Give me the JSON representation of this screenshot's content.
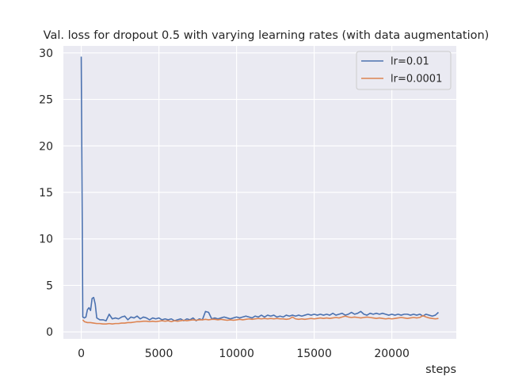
{
  "chart_data": {
    "type": "line",
    "title": "Val. loss for dropout 0.5 with varying learning rates (with data augmentation)",
    "xlabel": "steps",
    "ylabel": "",
    "xlim": [
      -1150,
      24150
    ],
    "ylim": [
      -0.75,
      30.75
    ],
    "xticks": [
      0,
      5000,
      10000,
      15000,
      20000
    ],
    "yticks": [
      0,
      5,
      10,
      15,
      20,
      25,
      30
    ],
    "grid": true,
    "legend_position": "top-right",
    "background": "#eaeaf2",
    "series": [
      {
        "name": "lr=0.01",
        "color": "#4c72b0",
        "points": [
          [
            0,
            29.6
          ],
          [
            100,
            1.6
          ],
          [
            200,
            1.5
          ],
          [
            300,
            1.6
          ],
          [
            400,
            2.4
          ],
          [
            500,
            2.6
          ],
          [
            600,
            2.3
          ],
          [
            700,
            3.6
          ],
          [
            800,
            3.7
          ],
          [
            900,
            3.0
          ],
          [
            1000,
            1.5
          ],
          [
            1200,
            1.3
          ],
          [
            1400,
            1.3
          ],
          [
            1600,
            1.2
          ],
          [
            1800,
            1.9
          ],
          [
            2000,
            1.4
          ],
          [
            2200,
            1.5
          ],
          [
            2400,
            1.4
          ],
          [
            2600,
            1.6
          ],
          [
            2800,
            1.7
          ],
          [
            3000,
            1.3
          ],
          [
            3200,
            1.6
          ],
          [
            3400,
            1.5
          ],
          [
            3600,
            1.7
          ],
          [
            3800,
            1.4
          ],
          [
            4000,
            1.6
          ],
          [
            4200,
            1.5
          ],
          [
            4400,
            1.3
          ],
          [
            4600,
            1.5
          ],
          [
            4800,
            1.4
          ],
          [
            5000,
            1.5
          ],
          [
            5200,
            1.3
          ],
          [
            5400,
            1.4
          ],
          [
            5600,
            1.3
          ],
          [
            5800,
            1.4
          ],
          [
            6000,
            1.2
          ],
          [
            6200,
            1.3
          ],
          [
            6400,
            1.4
          ],
          [
            6600,
            1.2
          ],
          [
            6800,
            1.4
          ],
          [
            7000,
            1.3
          ],
          [
            7200,
            1.5
          ],
          [
            7400,
            1.2
          ],
          [
            7600,
            1.4
          ],
          [
            7800,
            1.3
          ],
          [
            8000,
            2.2
          ],
          [
            8200,
            2.1
          ],
          [
            8400,
            1.4
          ],
          [
            8600,
            1.5
          ],
          [
            8800,
            1.4
          ],
          [
            9000,
            1.5
          ],
          [
            9200,
            1.6
          ],
          [
            9400,
            1.5
          ],
          [
            9600,
            1.4
          ],
          [
            9800,
            1.5
          ],
          [
            10000,
            1.6
          ],
          [
            10200,
            1.5
          ],
          [
            10400,
            1.6
          ],
          [
            10600,
            1.7
          ],
          [
            10800,
            1.6
          ],
          [
            11000,
            1.5
          ],
          [
            11200,
            1.7
          ],
          [
            11400,
            1.6
          ],
          [
            11600,
            1.8
          ],
          [
            11800,
            1.6
          ],
          [
            12000,
            1.8
          ],
          [
            12200,
            1.7
          ],
          [
            12400,
            1.8
          ],
          [
            12600,
            1.6
          ],
          [
            12800,
            1.7
          ],
          [
            13000,
            1.6
          ],
          [
            13200,
            1.8
          ],
          [
            13400,
            1.7
          ],
          [
            13600,
            1.8
          ],
          [
            13800,
            1.7
          ],
          [
            14000,
            1.8
          ],
          [
            14200,
            1.7
          ],
          [
            14400,
            1.8
          ],
          [
            14600,
            1.9
          ],
          [
            14800,
            1.8
          ],
          [
            15000,
            1.9
          ],
          [
            15200,
            1.8
          ],
          [
            15400,
            1.9
          ],
          [
            15600,
            1.8
          ],
          [
            15800,
            1.9
          ],
          [
            16000,
            1.8
          ],
          [
            16200,
            2.0
          ],
          [
            16400,
            1.8
          ],
          [
            16600,
            1.9
          ],
          [
            16800,
            2.0
          ],
          [
            17000,
            1.8
          ],
          [
            17200,
            1.9
          ],
          [
            17400,
            2.1
          ],
          [
            17600,
            1.9
          ],
          [
            17800,
            2.0
          ],
          [
            18000,
            2.2
          ],
          [
            18200,
            1.9
          ],
          [
            18400,
            1.8
          ],
          [
            18600,
            2.0
          ],
          [
            18800,
            1.9
          ],
          [
            19000,
            2.0
          ],
          [
            19200,
            1.9
          ],
          [
            19400,
            2.0
          ],
          [
            19600,
            1.9
          ],
          [
            19800,
            1.8
          ],
          [
            20000,
            1.9
          ],
          [
            20200,
            1.8
          ],
          [
            20400,
            1.9
          ],
          [
            20600,
            1.8
          ],
          [
            20800,
            1.9
          ],
          [
            21000,
            1.9
          ],
          [
            21200,
            1.8
          ],
          [
            21400,
            1.9
          ],
          [
            21600,
            1.8
          ],
          [
            21800,
            1.9
          ],
          [
            22000,
            1.7
          ],
          [
            22200,
            1.9
          ],
          [
            22400,
            1.8
          ],
          [
            22600,
            1.7
          ],
          [
            22800,
            1.8
          ],
          [
            23000,
            2.1
          ]
        ]
      },
      {
        "name": "lr=0.0001",
        "color": "#dd8452",
        "points": [
          [
            100,
            1.3
          ],
          [
            200,
            1.1
          ],
          [
            400,
            1.0
          ],
          [
            600,
            1.0
          ],
          [
            800,
            0.95
          ],
          [
            1000,
            0.9
          ],
          [
            1200,
            0.9
          ],
          [
            1400,
            0.85
          ],
          [
            1600,
            0.85
          ],
          [
            1800,
            0.9
          ],
          [
            2000,
            0.85
          ],
          [
            2200,
            0.9
          ],
          [
            2400,
            0.9
          ],
          [
            2600,
            0.95
          ],
          [
            2800,
            0.95
          ],
          [
            3000,
            1.0
          ],
          [
            3200,
            1.0
          ],
          [
            3400,
            1.05
          ],
          [
            3600,
            1.1
          ],
          [
            3800,
            1.1
          ],
          [
            4000,
            1.15
          ],
          [
            4200,
            1.15
          ],
          [
            4400,
            1.1
          ],
          [
            4600,
            1.15
          ],
          [
            4800,
            1.1
          ],
          [
            5000,
            1.15
          ],
          [
            5200,
            1.2
          ],
          [
            5400,
            1.15
          ],
          [
            5600,
            1.2
          ],
          [
            5800,
            1.1
          ],
          [
            6000,
            1.2
          ],
          [
            6200,
            1.15
          ],
          [
            6400,
            1.2
          ],
          [
            6600,
            1.25
          ],
          [
            6800,
            1.2
          ],
          [
            7000,
            1.25
          ],
          [
            7200,
            1.3
          ],
          [
            7400,
            1.25
          ],
          [
            7600,
            1.3
          ],
          [
            7800,
            1.3
          ],
          [
            8000,
            1.35
          ],
          [
            8200,
            1.3
          ],
          [
            8400,
            1.35
          ],
          [
            8600,
            1.35
          ],
          [
            8800,
            1.3
          ],
          [
            9000,
            1.35
          ],
          [
            9200,
            1.3
          ],
          [
            9400,
            1.25
          ],
          [
            9600,
            1.3
          ],
          [
            9800,
            1.25
          ],
          [
            10000,
            1.3
          ],
          [
            10200,
            1.35
          ],
          [
            10400,
            1.3
          ],
          [
            10600,
            1.35
          ],
          [
            10800,
            1.4
          ],
          [
            11000,
            1.35
          ],
          [
            11200,
            1.4
          ],
          [
            11400,
            1.45
          ],
          [
            11600,
            1.4
          ],
          [
            11800,
            1.45
          ],
          [
            12000,
            1.4
          ],
          [
            12200,
            1.45
          ],
          [
            12400,
            1.4
          ],
          [
            12600,
            1.45
          ],
          [
            12800,
            1.4
          ],
          [
            13000,
            1.4
          ],
          [
            13200,
            1.35
          ],
          [
            13400,
            1.4
          ],
          [
            13600,
            1.6
          ],
          [
            13800,
            1.4
          ],
          [
            14000,
            1.35
          ],
          [
            14200,
            1.4
          ],
          [
            14400,
            1.35
          ],
          [
            14600,
            1.4
          ],
          [
            14800,
            1.45
          ],
          [
            15000,
            1.4
          ],
          [
            15200,
            1.45
          ],
          [
            15400,
            1.5
          ],
          [
            15600,
            1.45
          ],
          [
            15800,
            1.5
          ],
          [
            16000,
            1.45
          ],
          [
            16200,
            1.5
          ],
          [
            16400,
            1.55
          ],
          [
            16600,
            1.5
          ],
          [
            16800,
            1.6
          ],
          [
            17000,
            1.7
          ],
          [
            17200,
            1.6
          ],
          [
            17400,
            1.55
          ],
          [
            17600,
            1.6
          ],
          [
            17800,
            1.55
          ],
          [
            18000,
            1.5
          ],
          [
            18200,
            1.55
          ],
          [
            18400,
            1.6
          ],
          [
            18600,
            1.55
          ],
          [
            18800,
            1.5
          ],
          [
            19000,
            1.45
          ],
          [
            19200,
            1.5
          ],
          [
            19400,
            1.45
          ],
          [
            19600,
            1.4
          ],
          [
            19800,
            1.45
          ],
          [
            20000,
            1.4
          ],
          [
            20200,
            1.45
          ],
          [
            20400,
            1.5
          ],
          [
            20600,
            1.55
          ],
          [
            20800,
            1.5
          ],
          [
            21000,
            1.45
          ],
          [
            21200,
            1.5
          ],
          [
            21400,
            1.55
          ],
          [
            21600,
            1.5
          ],
          [
            21800,
            1.55
          ],
          [
            22000,
            1.75
          ],
          [
            22200,
            1.6
          ],
          [
            22400,
            1.5
          ],
          [
            22600,
            1.45
          ],
          [
            22800,
            1.4
          ],
          [
            23000,
            1.45
          ]
        ]
      }
    ]
  }
}
